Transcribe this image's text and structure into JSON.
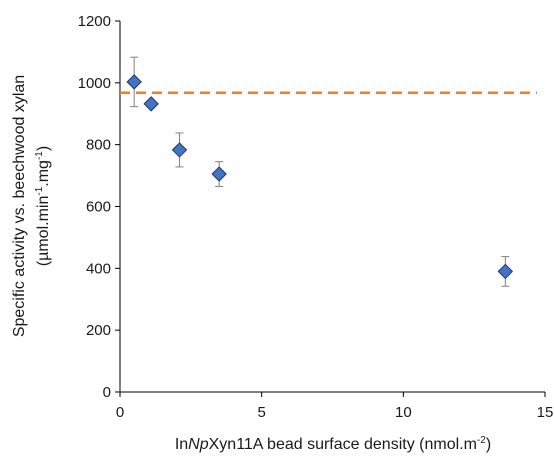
{
  "chart_data": {
    "type": "scatter",
    "xlim": [
      0,
      15
    ],
    "ylim": [
      0,
      1200
    ],
    "x_ticks": [
      0,
      5,
      10,
      15
    ],
    "y_ticks": [
      0,
      200,
      400,
      600,
      800,
      1000,
      1200
    ],
    "x_tick_labels": [
      "0",
      "5",
      "10",
      "15"
    ],
    "y_tick_labels": [
      "0",
      "200",
      "400",
      "600",
      "800",
      "1000",
      "1200"
    ],
    "xlabel": {
      "part1": "In",
      "part2": "Np",
      "part3": "Xyn11A bead surface density (nmol.m",
      "sup": "-2",
      "part4": ")"
    },
    "ylabel": {
      "line1": "Specific activity vs. beechwood xylan",
      "line2_a": "(µmol.min",
      "line2_sup1": "-1",
      "line2_b": ".mg",
      "line2_sup2": "-1",
      "line2_c": ")"
    },
    "grid": false,
    "marker": "diamond",
    "marker_color": "#4472c4",
    "reference_line": {
      "y": 968,
      "color": "#ed7d31",
      "style": "dashed"
    },
    "series": [
      {
        "points": [
          {
            "x": 0.5,
            "y": 1003,
            "err": 80
          },
          {
            "x": 1.1,
            "y": 932,
            "err": 0
          },
          {
            "x": 2.1,
            "y": 783,
            "err": 55
          },
          {
            "x": 3.5,
            "y": 705,
            "err": 40
          },
          {
            "x": 13.6,
            "y": 390,
            "err": 48
          }
        ]
      }
    ]
  }
}
